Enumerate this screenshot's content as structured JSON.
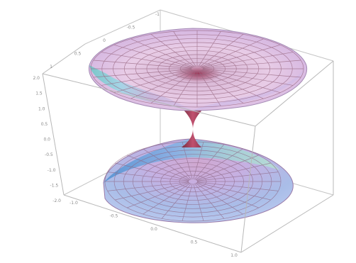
{
  "figure": {
    "description_type": "3d-surface-plot",
    "surface": "hyperboloid-throat",
    "colors": {
      "background": "#ffffff",
      "frame": "#bfbfbf",
      "mesh": "#9a6a84",
      "surface_light": "#f0d4ec",
      "surface_mid": "#c8a6d8",
      "surface_blue": "#8fb8e6",
      "surface_teal": "#78c8cc",
      "throat": "#b04a6a"
    }
  },
  "axes": {
    "left_ticks": [
      "2.0",
      "1.5",
      "1.0",
      "0.5",
      "0.0",
      "-0.5",
      "-1.0",
      "-1.5",
      "-2.0"
    ],
    "top_ticks": [
      "1",
      "0.5",
      "0",
      "-0.5",
      "-1"
    ],
    "bottom_ticks": [
      "-1.0",
      "-0.5",
      "0.0",
      "0.5",
      "1.0"
    ]
  }
}
